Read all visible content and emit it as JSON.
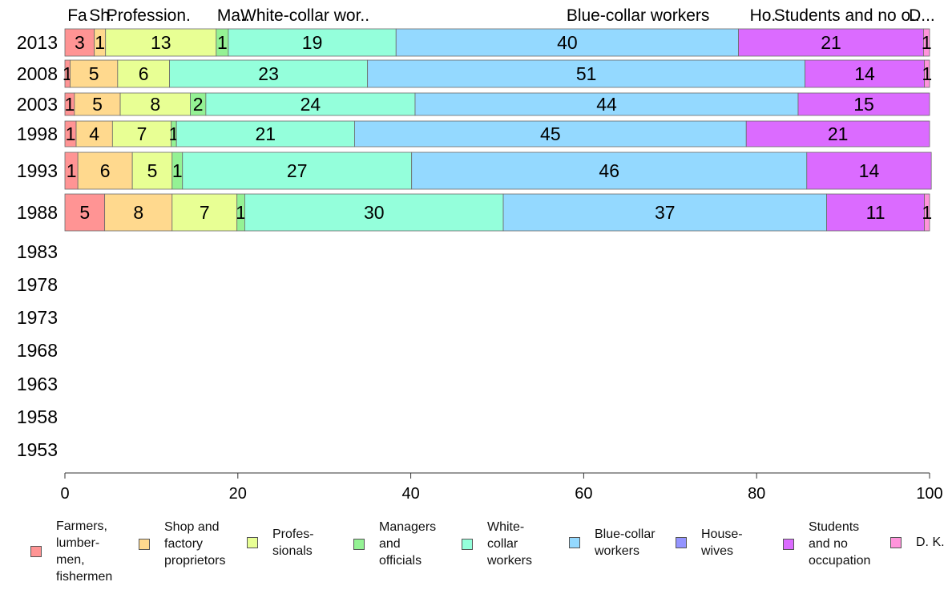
{
  "chart_data": {
    "type": "bar",
    "orientation": "horizontal",
    "stacked": true,
    "categories": [
      "2013",
      "2008",
      "2003",
      "1998",
      "1993",
      "1988",
      "1983",
      "1978",
      "1973",
      "1968",
      "1963",
      "1958",
      "1953"
    ],
    "xlim": [
      0,
      100
    ],
    "xticks": [
      "0",
      "20",
      "40",
      "60",
      "80",
      "100"
    ],
    "legend_position": "bottom",
    "grid": false,
    "top_labels": [
      {
        "text": "Fa",
        "at": 0.3
      },
      {
        "text": "Sh.",
        "at": 2.8
      },
      {
        "text": "Profession.",
        "at": 4.8
      },
      {
        "text": "Ma..",
        "at": 17.6
      },
      {
        "text": "White-collar wor..",
        "at": 20.3
      },
      {
        "text": "Blue-collar workers",
        "at": 58.0
      },
      {
        "text": "Ho.",
        "at": 79.2
      },
      {
        "text": "Students and no o..",
        "at": 82.0
      },
      {
        "text": "D...",
        "at": 97.6
      }
    ],
    "series": [
      {
        "name": "Farmers, lumber-men, fishermen",
        "legend_label": "Farmers,\nlumber-\nmen,\nfishermen",
        "color": "#ff9494",
        "values": [
          3.4,
          0.6,
          1.1,
          1.3,
          1.5,
          4.6,
          null,
          null,
          null,
          null,
          null,
          null,
          null
        ],
        "labels": [
          "3",
          "1",
          "1",
          "1",
          "1",
          "5",
          "",
          "",
          "",
          "",
          "",
          "",
          ""
        ]
      },
      {
        "name": "Shop and factory proprietors",
        "legend_label": "Shop and\nfactory\nproprietors",
        "color": "#ffd98e",
        "values": [
          1.3,
          5.5,
          5.3,
          4.2,
          6.3,
          7.8,
          null,
          null,
          null,
          null,
          null,
          null,
          null
        ],
        "labels": [
          "1",
          "5",
          "5",
          "4",
          "6",
          "8",
          "",
          "",
          "",
          "",
          "",
          "",
          ""
        ]
      },
      {
        "name": "Profes-sionals",
        "legend_label": "Profes-\nsionals",
        "color": "#e8ff94",
        "values": [
          12.8,
          6.0,
          8.1,
          6.8,
          4.6,
          7.5,
          null,
          null,
          null,
          null,
          null,
          null,
          null
        ],
        "labels": [
          "13",
          "6",
          "8",
          "7",
          "5",
          "7",
          "",
          "",
          "",
          "",
          "",
          "",
          ""
        ]
      },
      {
        "name": "Managers and officials",
        "legend_label": "Managers\nand\nofficials",
        "color": "#94f294",
        "values": [
          1.4,
          0.0,
          1.8,
          0.6,
          1.2,
          0.9,
          null,
          null,
          null,
          null,
          null,
          null,
          null
        ],
        "labels": [
          "1",
          "",
          "2",
          "1",
          "1",
          "1",
          "",
          "",
          "",
          "",
          "",
          "",
          ""
        ]
      },
      {
        "name": "White-collar workers",
        "legend_label": "White-\ncollar\nworkers",
        "color": "#94ffdb",
        "values": [
          19.4,
          22.9,
          24.2,
          20.6,
          26.5,
          29.9,
          null,
          null,
          null,
          null,
          null,
          null,
          null
        ],
        "labels": [
          "19",
          "23",
          "24",
          "21",
          "27",
          "30",
          "",
          "",
          "",
          "",
          "",
          "",
          ""
        ]
      },
      {
        "name": "Blue-collar workers",
        "legend_label": "Blue-collar\nworkers",
        "color": "#94d9ff",
        "values": [
          39.6,
          50.6,
          44.3,
          45.3,
          45.7,
          37.4,
          null,
          null,
          null,
          null,
          null,
          null,
          null
        ],
        "labels": [
          "40",
          "51",
          "44",
          "45",
          "46",
          "37",
          "",
          "",
          "",
          "",
          "",
          "",
          ""
        ]
      },
      {
        "name": "House-wives",
        "legend_label": "House-\nwives",
        "color": "#9494ff",
        "values": [
          0.0,
          0.0,
          0.0,
          0.0,
          0.0,
          0.0,
          null,
          null,
          null,
          null,
          null,
          null,
          null
        ],
        "labels": [
          "",
          "",
          "",
          "",
          "",
          "",
          "",
          "",
          "",
          "",
          "",
          "",
          ""
        ]
      },
      {
        "name": "Students and no occupation",
        "legend_label": "Students\nand no\noccupation",
        "color": "#db6bff",
        "values": [
          21.4,
          13.8,
          15.2,
          21.2,
          14.4,
          11.3,
          null,
          null,
          null,
          null,
          null,
          null,
          null
        ],
        "labels": [
          "21",
          "14",
          "15",
          "21",
          "14",
          "11",
          "",
          "",
          "",
          "",
          "",
          "",
          ""
        ]
      },
      {
        "name": "D. K.",
        "legend_label": "D. K.",
        "color": "#ff94db",
        "values": [
          0.7,
          0.6,
          0.0,
          0.0,
          0.0,
          0.6,
          null,
          null,
          null,
          null,
          null,
          null,
          null
        ],
        "labels": [
          "1",
          "1",
          "",
          "",
          "",
          "1",
          "",
          "",
          "",
          "",
          "",
          "",
          ""
        ]
      }
    ]
  }
}
